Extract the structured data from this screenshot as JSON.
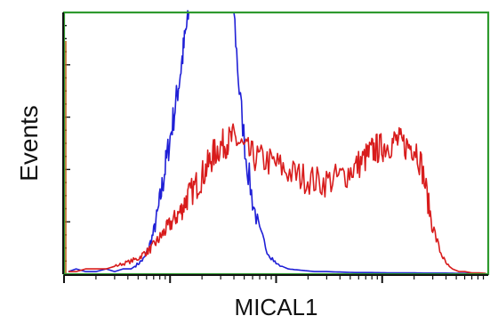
{
  "chart_data": {
    "type": "line",
    "title": "",
    "xlabel": "MICAL1",
    "ylabel": "Events",
    "x_scale": "log",
    "xlim": [
      1,
      10000
    ],
    "ylim": [
      0,
      100
    ],
    "grid": false,
    "legend": "none",
    "frame_color": "#2e9a2e",
    "series": [
      {
        "color": "#1f1fd6",
        "x": [
          1.1,
          1.3,
          1.6,
          2,
          2.5,
          3,
          3.6,
          4.3,
          5,
          5.7,
          6.3,
          7,
          7.7,
          8.4,
          9.1,
          10,
          11,
          12,
          13,
          14,
          15,
          17,
          19,
          21,
          23,
          25,
          27,
          30,
          33,
          36,
          40,
          45,
          52,
          60,
          70,
          85,
          100,
          130,
          170,
          230,
          300,
          400,
          550,
          800,
          1200,
          1800,
          2600,
          4000,
          6000,
          9000
        ],
        "y": [
          1,
          2,
          1,
          1,
          2,
          1,
          2,
          2,
          4,
          6,
          10,
          16,
          24,
          33,
          42,
          52,
          62,
          72,
          82,
          92,
          100,
          100,
          100,
          100,
          100,
          100,
          100,
          100,
          100,
          100,
          100,
          70,
          45,
          28,
          16,
          8,
          4,
          2,
          1.5,
          1,
          1,
          0.8,
          0.6,
          0.6,
          0.5,
          0.5,
          0.4,
          0.4,
          0.3,
          0.3
        ]
      },
      {
        "color": "#d81c1c",
        "x": [
          1.1,
          1.3,
          1.6,
          2,
          2.5,
          3,
          3.6,
          4.3,
          5,
          5.7,
          6.3,
          7,
          7.7,
          8.4,
          9.1,
          10,
          11,
          12,
          13,
          14,
          15,
          17,
          19,
          21,
          23,
          25,
          27,
          30,
          33,
          36,
          40,
          45,
          52,
          60,
          70,
          85,
          100,
          120,
          150,
          180,
          220,
          270,
          330,
          400,
          480,
          560,
          640,
          720,
          800,
          880,
          960,
          1050,
          1200,
          1350,
          1500,
          1700,
          1900,
          2100,
          2400,
          2700,
          3000,
          3500,
          4000,
          4600,
          5300,
          6000,
          7000,
          8000,
          9500
        ],
        "y": [
          1,
          1,
          2,
          2,
          2,
          3,
          4,
          5,
          6,
          8,
          9,
          11,
          13,
          15,
          17,
          19,
          21,
          23,
          25,
          28,
          30,
          33,
          36,
          39,
          42,
          45,
          47,
          49,
          50,
          51,
          52,
          50,
          47,
          45,
          44,
          43,
          42,
          40,
          38,
          37,
          36,
          35,
          36,
          37,
          39,
          41,
          43,
          45,
          47,
          48,
          48,
          49,
          50,
          51,
          50,
          49,
          49,
          48,
          40,
          28,
          18,
          9,
          4,
          2,
          1,
          1,
          0.5,
          0.5,
          0.3
        ]
      }
    ]
  }
}
